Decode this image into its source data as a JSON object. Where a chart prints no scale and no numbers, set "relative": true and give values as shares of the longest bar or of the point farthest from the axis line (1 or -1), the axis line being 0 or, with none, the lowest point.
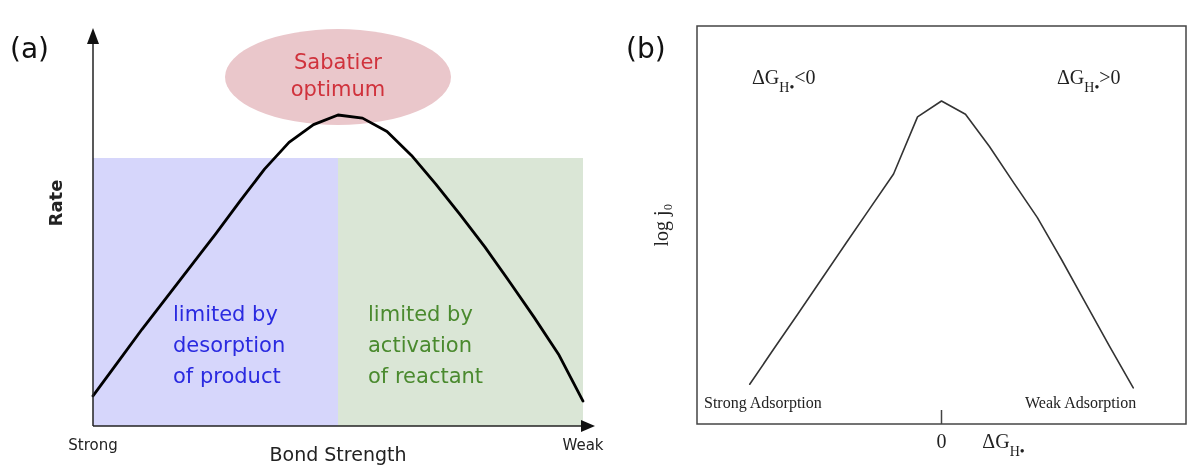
{
  "chart_data": [
    {
      "type": "line",
      "title": "(a)",
      "xlabel": "Bond Strength",
      "ylabel": "Rate",
      "relative": true,
      "categories": [
        "Strong",
        null,
        null,
        null,
        null,
        null,
        null,
        null,
        null,
        null,
        null,
        null,
        null,
        null,
        null,
        null,
        null,
        null,
        null,
        null,
        "Weak"
      ],
      "series": [
        {
          "color": "#000000",
          "values": [
            0.097,
            0.204,
            0.311,
            0.413,
            0.515,
            0.617,
            0.723,
            0.826,
            0.912,
            0.969,
            1,
            0.99,
            0.947,
            0.87,
            0.777,
            0.678,
            0.575,
            0.464,
            0.35,
            0.231,
            0.08
          ]
        }
      ],
      "annotations": [
        "Sabatier optimum",
        "limited by desorption of product",
        "limited by activation of reactant"
      ]
    },
    {
      "type": "line",
      "title": "(b)",
      "xlabel": "ΔG$_{H•}$",
      "ylabel": "log j₀",
      "relative": true,
      "categories": [
        null,
        null,
        null,
        null,
        null,
        null,
        null,
        null,
        null,
        null,
        null,
        null,
        null,
        null,
        null,
        null,
        null
      ],
      "series": [
        {
          "color": "#333333",
          "values": [
            0.123,
            0.232,
            0.34,
            0.449,
            0.558,
            0.666,
            0.774,
            0.951,
            1,
            0.959,
            0.859,
            0.748,
            0.639,
            0.51,
            0.376,
            0.242,
            0.112
          ]
        }
      ],
      "annotations": [
        "0",
        "ΔG$_{H•}$<0",
        "ΔG$_{H•}$>0",
        "Strong Adsorption",
        "Weak Adsorption"
      ]
    }
  ]
}
